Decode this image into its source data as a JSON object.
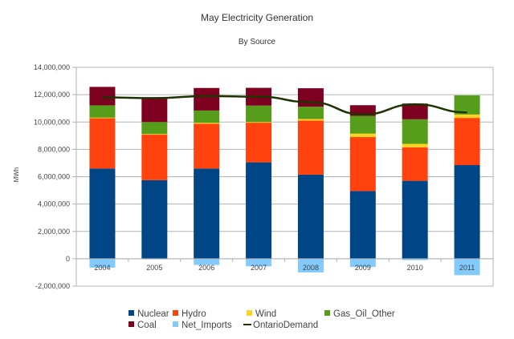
{
  "chart_data": {
    "type": "bar",
    "stacked": true,
    "title": "May Electricity Generation",
    "subtitle": "By Source",
    "xlabel": "",
    "ylabel": "MWh",
    "ylim": [
      -2000000,
      14000000
    ],
    "yticks": [
      -2000000,
      0,
      2000000,
      4000000,
      6000000,
      8000000,
      10000000,
      12000000,
      14000000
    ],
    "ytick_labels": [
      "-2,000,000",
      "0",
      "2,000,000",
      "4,000,000",
      "6,000,000",
      "8,000,000",
      "10,000,000",
      "12,000,000",
      "14,000,000"
    ],
    "grid": true,
    "legend_position": "bottom",
    "categories": [
      "2004",
      "2005",
      "2006",
      "2007",
      "2008",
      "2009",
      "2010",
      "2011"
    ],
    "series": [
      {
        "name": "Nuclear",
        "type": "bar",
        "color": "#004586",
        "values": [
          6600000,
          5750000,
          6600000,
          7050000,
          6150000,
          4950000,
          5700000,
          6850000
        ]
      },
      {
        "name": "Hydro",
        "type": "bar",
        "color": "#ff420e",
        "values": [
          3700000,
          3350000,
          3270000,
          2900000,
          3950000,
          3950000,
          2450000,
          3450000
        ]
      },
      {
        "name": "Wind",
        "type": "bar",
        "color": "#ffd320",
        "values": [
          20000,
          20000,
          70000,
          50000,
          120000,
          250000,
          250000,
          250000
        ]
      },
      {
        "name": "Gas_Oil_Other",
        "type": "bar",
        "color": "#579d1c",
        "values": [
          900000,
          880000,
          900000,
          1200000,
          900000,
          1300000,
          1800000,
          1400000
        ]
      },
      {
        "name": "Coal",
        "type": "bar",
        "color": "#7e0021",
        "values": [
          1350000,
          1750000,
          1650000,
          1300000,
          1350000,
          780000,
          1150000,
          0
        ]
      },
      {
        "name": "Net_Imports",
        "type": "bar",
        "color": "#83caff",
        "values": [
          -650000,
          -20000,
          -450000,
          -550000,
          -1000000,
          -600000,
          -100000,
          -1200000
        ]
      },
      {
        "name": "OntarioDemand",
        "type": "line",
        "color": "#1e3302",
        "values": [
          11800000,
          11750000,
          11900000,
          11850000,
          11450000,
          10550000,
          11300000,
          10700000
        ]
      }
    ]
  }
}
